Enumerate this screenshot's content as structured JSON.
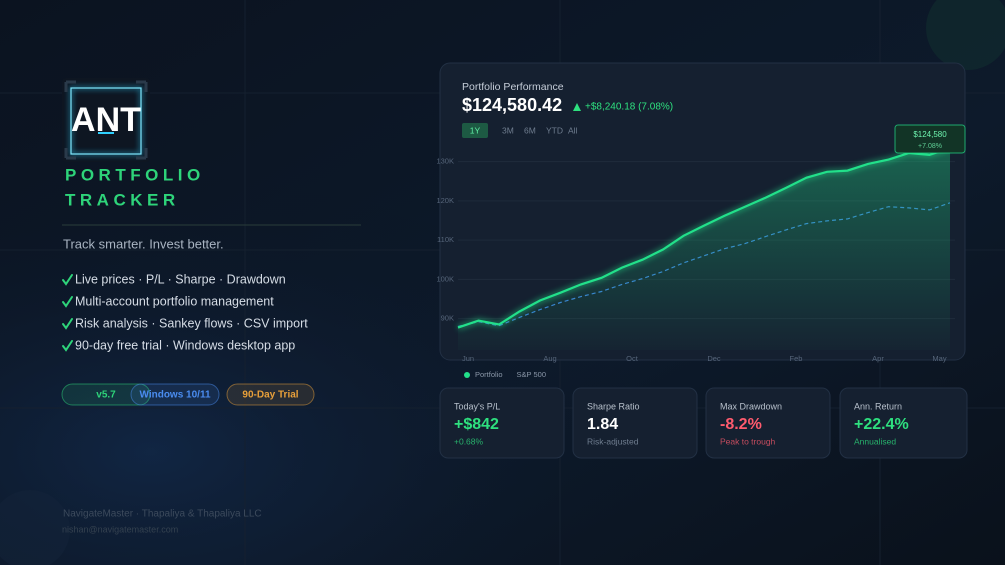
{
  "brand": {
    "logo": "ANT",
    "title_lines": [
      "PORTFOLIO",
      "TRACKER"
    ],
    "tagline": "Track smarter. Invest better."
  },
  "features": [
    "Live prices · P/L · Sharpe · Drawdown",
    "Multi-account portfolio management",
    "Risk analysis · Sankey flows · CSV import",
    "90-day free trial · Windows desktop app"
  ],
  "badges": [
    {
      "text": "v5.7",
      "color": "#2ed47a"
    },
    {
      "text": "Windows 10/11",
      "color": "#4a8cf0"
    },
    {
      "text": "90-Day Trial",
      "color": "#e8a03a"
    }
  ],
  "chart_data": {
    "type": "line",
    "title": "Portfolio Performance",
    "headline_value": "$124,580.42",
    "headline_change": "+$8,240.18 (7.08%)",
    "ranges": [
      "1Y",
      "3M",
      "6M",
      "YTD",
      "All"
    ],
    "selected_range": "1Y",
    "categories": [
      "Jun",
      null,
      null,
      null,
      "Aug",
      null,
      null,
      null,
      "Oct",
      null,
      null,
      null,
      "Dec",
      null,
      null,
      null,
      "Feb",
      null,
      null,
      null,
      "Apr",
      null,
      null,
      "May",
      null
    ],
    "series": [
      {
        "name": "Portfolio",
        "color": "#22e08a",
        "values": [
          87700,
          89500,
          88500,
          91800,
          94600,
          96600,
          98700,
          100400,
          103000,
          105000,
          107600,
          111100,
          113700,
          116200,
          118500,
          120800,
          123300,
          125900,
          127400,
          127700,
          129400,
          130500,
          132200,
          131700,
          133500
        ]
      },
      {
        "name": "S&P 500",
        "color": "#3a7bd5",
        "dashed": true,
        "values": [
          88000,
          89200,
          88200,
          90300,
          92300,
          94100,
          95600,
          96900,
          98700,
          100200,
          102000,
          104200,
          106000,
          107800,
          109100,
          110900,
          112600,
          114200,
          114900,
          115400,
          117000,
          118500,
          118200,
          117700,
          119500
        ]
      }
    ],
    "ylim": [
      82000,
      135500
    ],
    "yticks": [
      {
        "value": 90000,
        "label": "90K"
      },
      {
        "value": 100000,
        "label": "100K"
      },
      {
        "value": 110000,
        "label": "110K"
      },
      {
        "value": 120000,
        "label": "120K"
      },
      {
        "value": 130000,
        "label": "130K"
      }
    ],
    "grid": true,
    "tooltip": {
      "value": "$124,580",
      "change": "+7.08%"
    }
  },
  "stats": [
    {
      "label": "Today's P/L",
      "value": "+$842",
      "sub": "+0.68%",
      "color": "#2ee07f"
    },
    {
      "label": "Sharpe Ratio",
      "value": "1.84",
      "sub": "Risk-adjusted",
      "color": "#ffffff"
    },
    {
      "label": "Max Drawdown",
      "value": "-8.2%",
      "sub": "Peak to trough",
      "color": "#ff5b6e"
    },
    {
      "label": "Ann. Return",
      "value": "+22.4%",
      "sub": "Annualised",
      "color": "#2ee07f"
    }
  ],
  "footer": {
    "company": "NavigateMaster · Thapaliya & Thapaliya LLC",
    "email": "nishan@navigatemaster.com"
  }
}
